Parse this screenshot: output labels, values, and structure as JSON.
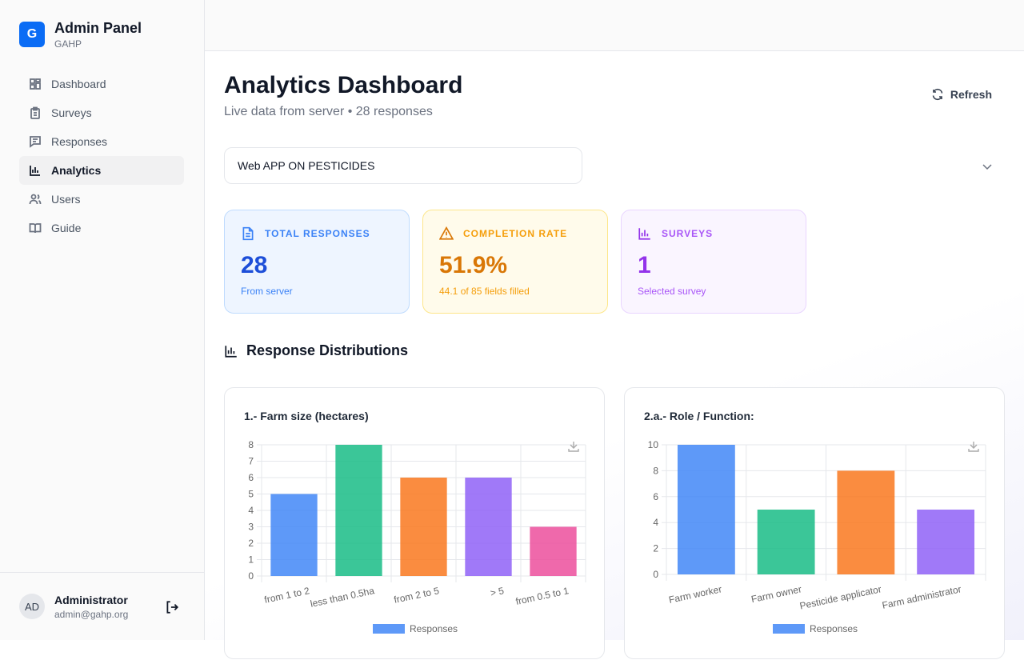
{
  "brand": {
    "initial": "G",
    "title": "Admin Panel",
    "subtitle": "GAHP"
  },
  "nav": [
    {
      "label": "Dashboard",
      "icon": "grid-icon"
    },
    {
      "label": "Surveys",
      "icon": "clipboard-icon"
    },
    {
      "label": "Responses",
      "icon": "message-icon"
    },
    {
      "label": "Analytics",
      "icon": "bar-chart-icon",
      "active": true
    },
    {
      "label": "Users",
      "icon": "users-icon"
    },
    {
      "label": "Guide",
      "icon": "book-icon"
    }
  ],
  "user": {
    "initials": "AD",
    "name": "Administrator",
    "email": "admin@gahp.org"
  },
  "header": {
    "title": "Analytics Dashboard",
    "subtitle": "Live data from server • 28 responses",
    "refresh_label": "Refresh"
  },
  "survey_select": {
    "value": "Web APP ON PESTICIDES"
  },
  "stats": [
    {
      "label": "TOTAL RESPONSES",
      "value": "28",
      "sub": "From server",
      "color": "#2563eb"
    },
    {
      "label": "COMPLETION RATE",
      "value": "51.9%",
      "sub": "44.1 of 85 fields filled",
      "color": "#d97706"
    },
    {
      "label": "SURVEYS",
      "value": "1",
      "sub": "Selected survey",
      "color": "#9333ea"
    }
  ],
  "section_title": "Response Distributions",
  "chart_data": [
    {
      "type": "bar",
      "title": "1.- Farm size (hectares)",
      "categories": [
        "from 1 to 2",
        "less than 0.5ha",
        "from 2 to 5",
        "> 5",
        "from 0.5 to 1"
      ],
      "series": [
        {
          "name": "Responses",
          "values": [
            5,
            8,
            6,
            6,
            3
          ]
        }
      ],
      "ylim": [
        0,
        8
      ],
      "yticks": [
        0,
        1,
        2,
        3,
        4,
        5,
        6,
        7,
        8
      ],
      "grid": true,
      "legend": "bottom",
      "colors": [
        "#3b82f6",
        "#10b981",
        "#f97316",
        "#8b5cf6",
        "#ec4899"
      ]
    },
    {
      "type": "bar",
      "title": "2.a.- Role / Function:",
      "categories": [
        "Farm worker",
        "Farm owner",
        "Pesticide applicator",
        "Farm administrator"
      ],
      "series": [
        {
          "name": "Responses",
          "values": [
            10,
            5,
            8,
            5
          ]
        }
      ],
      "ylim": [
        0,
        10
      ],
      "yticks": [
        0,
        2,
        4,
        6,
        8,
        10
      ],
      "grid": true,
      "legend": "bottom",
      "colors": [
        "#3b82f6",
        "#10b981",
        "#f97316",
        "#8b5cf6"
      ]
    }
  ]
}
